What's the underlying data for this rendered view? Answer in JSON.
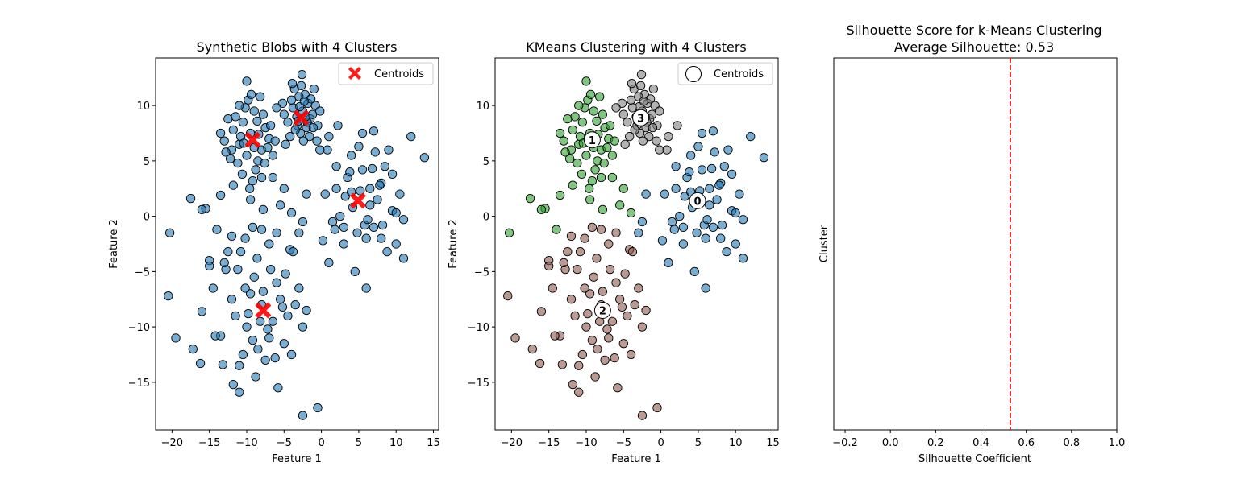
{
  "colors": {
    "blob_points": "#1f77b4",
    "centroid_marker": "#ff0000",
    "cluster_0": "#1f77b4",
    "cluster_1": "#2ca02c",
    "cluster_2": "#8c564b",
    "cluster_3": "#7f7f7f",
    "silhouette_line": "#ff0000"
  },
  "chart_data": [
    {
      "type": "scatter",
      "title": "Synthetic Blobs with 4 Clusters",
      "xlabel": "Feature 1",
      "ylabel": "Feature 2",
      "xlim": [
        -22.2,
        15.7
      ],
      "ylim": [
        -19.3,
        14.3
      ],
      "xticks": [
        -20,
        -15,
        -10,
        -5,
        0,
        5,
        10,
        15
      ],
      "yticks": [
        -15,
        -10,
        -5,
        0,
        5,
        10
      ],
      "grid": false,
      "legend": {
        "position": "top-right",
        "entries": [
          "Centroids"
        ]
      },
      "centroids": [
        [
          4.9,
          1.4
        ],
        [
          -9.2,
          6.9
        ],
        [
          -7.8,
          -8.5
        ],
        [
          -2.7,
          8.9
        ]
      ],
      "points": [
        [
          7.5,
          1.5
        ],
        [
          5.5,
          4.2
        ],
        [
          3.0,
          -1.0
        ],
        [
          8.0,
          3.0
        ],
        [
          6.0,
          -2.0
        ],
        [
          2.0,
          2.5
        ],
        [
          9.5,
          0.5
        ],
        [
          4.0,
          5.5
        ],
        [
          1.5,
          -0.5
        ],
        [
          6.5,
          1.0
        ],
        [
          10.0,
          -2.5
        ],
        [
          3.5,
          3.5
        ],
        [
          7.0,
          -1.0
        ],
        [
          5.0,
          6.3
        ],
        [
          8.5,
          4.5
        ],
        [
          0.5,
          2.0
        ],
        [
          11.0,
          -0.3
        ],
        [
          4.5,
          -5.0
        ],
        [
          6.0,
          -6.5
        ],
        [
          9.0,
          6.0
        ],
        [
          12.0,
          7.2
        ],
        [
          13.8,
          5.3
        ],
        [
          2.5,
          0.0
        ],
        [
          7.8,
          2.8
        ],
        [
          5.8,
          -0.8
        ],
        [
          3.2,
          1.8
        ],
        [
          8.8,
          -3.2
        ],
        [
          10.5,
          2.0
        ],
        [
          4.8,
          -1.5
        ],
        [
          6.8,
          4.3
        ],
        [
          1.0,
          -4.2
        ],
        [
          0.2,
          -2.2
        ],
        [
          11.0,
          -3.8
        ],
        [
          7.0,
          7.7
        ],
        [
          5.5,
          7.5
        ],
        [
          3.8,
          4.0
        ],
        [
          2.0,
          4.5
        ],
        [
          9.5,
          3.8
        ],
        [
          6.2,
          -0.3
        ],
        [
          4.2,
          0.8
        ],
        [
          8.2,
          -0.8
        ],
        [
          5.2,
          2.3
        ],
        [
          7.2,
          5.8
        ],
        [
          3.0,
          -2.5
        ],
        [
          10.0,
          0.3
        ],
        [
          0.8,
          6.0
        ],
        [
          1.8,
          -1.2
        ],
        [
          6.5,
          2.5
        ],
        [
          8.0,
          -2.0
        ],
        [
          4.0,
          2.2
        ],
        [
          -9.5,
          7.5
        ],
        [
          -8.0,
          6.0
        ],
        [
          -10.5,
          8.5
        ],
        [
          -7.5,
          8.0
        ],
        [
          -11.0,
          6.5
        ],
        [
          -9.0,
          9.5
        ],
        [
          -8.5,
          5.0
        ],
        [
          -10.0,
          5.5
        ],
        [
          -7.0,
          7.0
        ],
        [
          -11.5,
          9.0
        ],
        [
          -12.0,
          6.0
        ],
        [
          -9.8,
          10.5
        ],
        [
          -8.8,
          4.2
        ],
        [
          -10.8,
          7.2
        ],
        [
          -7.8,
          9.2
        ],
        [
          -12.5,
          8.8
        ],
        [
          -9.2,
          3.2
        ],
        [
          -6.5,
          5.5
        ],
        [
          -11.2,
          4.8
        ],
        [
          -8.2,
          10.8
        ],
        [
          -13.0,
          6.8
        ],
        [
          -10.2,
          9.8
        ],
        [
          -7.2,
          6.2
        ],
        [
          -9.6,
          2.5
        ],
        [
          -12.2,
          5.2
        ],
        [
          -10.6,
          3.8
        ],
        [
          -8.6,
          8.6
        ],
        [
          -6.8,
          8.2
        ],
        [
          -11.8,
          7.8
        ],
        [
          -9.4,
          11.0
        ],
        [
          -10.0,
          12.2
        ],
        [
          -13.5,
          7.5
        ],
        [
          -8.0,
          3.5
        ],
        [
          -6.2,
          6.8
        ],
        [
          -11.0,
          10.0
        ],
        [
          -9.0,
          6.2
        ],
        [
          -7.6,
          4.8
        ],
        [
          -12.8,
          5.8
        ],
        [
          -10.4,
          6.6
        ],
        [
          -8.4,
          7.4
        ],
        [
          -2.5,
          9.5
        ],
        [
          -3.2,
          8.2
        ],
        [
          -1.8,
          10.2
        ],
        [
          -2.8,
          7.5
        ],
        [
          -1.5,
          8.8
        ],
        [
          -3.8,
          9.8
        ],
        [
          -2.2,
          11.0
        ],
        [
          -1.2,
          9.2
        ],
        [
          -3.5,
          7.8
        ],
        [
          -2.0,
          8.0
        ],
        [
          -4.0,
          10.5
        ],
        [
          -0.8,
          10.0
        ],
        [
          -2.6,
          12.8
        ],
        [
          -3.0,
          10.8
        ],
        [
          -1.6,
          7.2
        ],
        [
          -4.5,
          8.5
        ],
        [
          -0.5,
          8.2
        ],
        [
          -2.4,
          6.8
        ],
        [
          -3.6,
          11.5
        ],
        [
          -1.0,
          11.5
        ],
        [
          -5.0,
          9.2
        ],
        [
          -0.2,
          9.5
        ],
        [
          -2.9,
          9.9
        ],
        [
          -1.9,
          8.5
        ],
        [
          -3.3,
          9.0
        ],
        [
          -4.2,
          7.2
        ],
        [
          -1.4,
          10.6
        ],
        [
          -2.7,
          11.8
        ],
        [
          -0.6,
          6.8
        ],
        [
          -5.2,
          10.2
        ],
        [
          -4.8,
          6.5
        ],
        [
          -0.2,
          6.0
        ],
        [
          1.0,
          7.2
        ],
        [
          2.2,
          8.2
        ],
        [
          -6.0,
          9.8
        ],
        [
          -3.9,
          12.0
        ],
        [
          -2.1,
          9.0
        ],
        [
          -1.1,
          8.0
        ],
        [
          -3.1,
          8.6
        ],
        [
          -2.3,
          10.4
        ],
        [
          -8.0,
          -8.0
        ],
        [
          -6.5,
          -9.5
        ],
        [
          -9.5,
          -7.0
        ],
        [
          -7.0,
          -11.0
        ],
        [
          -5.5,
          -7.5
        ],
        [
          -10.0,
          -10.0
        ],
        [
          -8.5,
          -12.0
        ],
        [
          -6.0,
          -6.0
        ],
        [
          -11.5,
          -9.0
        ],
        [
          -4.5,
          -9.0
        ],
        [
          -9.0,
          -5.5
        ],
        [
          -7.5,
          -13.0
        ],
        [
          -5.0,
          -11.5
        ],
        [
          -12.0,
          -7.5
        ],
        [
          -10.5,
          -12.5
        ],
        [
          -3.5,
          -8.0
        ],
        [
          -8.8,
          -14.5
        ],
        [
          -6.8,
          -4.8
        ],
        [
          -13.5,
          -10.8
        ],
        [
          -4.0,
          -12.5
        ],
        [
          -11.0,
          -13.5
        ],
        [
          -7.2,
          -10.2
        ],
        [
          -5.8,
          -15.5
        ],
        [
          -9.8,
          -8.8
        ],
        [
          -2.5,
          -10.0
        ],
        [
          -12.8,
          -4.8
        ],
        [
          -3.0,
          -6.5
        ],
        [
          -10.2,
          -6.5
        ],
        [
          -6.2,
          -12.8
        ],
        [
          -8.2,
          -9.5
        ],
        [
          -14.5,
          -6.5
        ],
        [
          -11.8,
          -15.2
        ],
        [
          -7.8,
          -6.8
        ],
        [
          -4.8,
          -5.2
        ],
        [
          -9.2,
          -11.2
        ],
        [
          -5.2,
          -8.2
        ],
        [
          -13.2,
          -13.4
        ],
        [
          -2.0,
          -8.5
        ],
        [
          -10.8,
          -3.2
        ],
        [
          -8.6,
          -3.8
        ],
        [
          -15.0,
          -4.0
        ],
        [
          -16.0,
          -8.6
        ],
        [
          -17.2,
          -12.0
        ],
        [
          -19.5,
          -11.0
        ],
        [
          -20.5,
          -7.2
        ],
        [
          -16.2,
          -13.3
        ],
        [
          -14.2,
          -10.8
        ],
        [
          -12.5,
          -3.2
        ],
        [
          -11.0,
          -15.9
        ],
        [
          -2.5,
          -18.0
        ],
        [
          -0.5,
          -17.3
        ],
        [
          -4.2,
          -3.0
        ],
        [
          -6.0,
          -1.5
        ],
        [
          -8.0,
          -1.2
        ],
        [
          -10.2,
          -2.0
        ],
        [
          -12.0,
          -1.8
        ],
        [
          -14.0,
          -1.2
        ],
        [
          -7.0,
          -2.5
        ],
        [
          -3.8,
          -3.2
        ],
        [
          -9.2,
          -1.0
        ],
        [
          -20.3,
          -1.5
        ],
        [
          -17.5,
          1.6
        ],
        [
          -15.5,
          0.7
        ],
        [
          -13.5,
          1.9
        ],
        [
          -11.8,
          2.8
        ],
        [
          -9.5,
          1.5
        ],
        [
          -7.8,
          0.6
        ],
        [
          -5.5,
          1.0
        ],
        [
          -4.0,
          0.3
        ],
        [
          -2.5,
          -0.5
        ],
        [
          -16.0,
          0.6
        ],
        [
          -15.0,
          -4.5
        ],
        [
          -13.0,
          -4.2
        ],
        [
          -11.2,
          -4.8
        ],
        [
          -3.0,
          -1.5
        ],
        [
          -2.0,
          2.0
        ],
        [
          -6.5,
          3.5
        ],
        [
          -5.0,
          2.5
        ]
      ]
    },
    {
      "type": "scatter",
      "title": "KMeans Clustering with 4 Clusters",
      "xlabel": "Feature 1",
      "ylabel": "Feature 2",
      "xlim": [
        -22.2,
        15.7
      ],
      "ylim": [
        -19.3,
        14.3
      ],
      "xticks": [
        -20,
        -15,
        -10,
        -5,
        0,
        5,
        10,
        15
      ],
      "yticks": [
        -15,
        -10,
        -5,
        0,
        5,
        10
      ],
      "grid": false,
      "legend": {
        "position": "top-right",
        "entries": [
          "Centroids"
        ]
      },
      "centroids": [
        {
          "label": "0",
          "x": 4.9,
          "y": 1.4
        },
        {
          "label": "1",
          "x": -9.2,
          "y": 6.9
        },
        {
          "label": "2",
          "x": -7.8,
          "y": -8.5
        },
        {
          "label": "3",
          "x": -2.7,
          "y": 8.9
        }
      ]
    },
    {
      "type": "bar",
      "title": "Silhouette Score for k-Means Clustering",
      "subtitle": "Average Silhouette: 0.53",
      "xlabel": "Silhouette Coefficient",
      "ylabel": "Cluster",
      "xlim": [
        -0.25,
        1.0
      ],
      "xticks": [
        -0.2,
        0.0,
        0.2,
        0.4,
        0.6,
        0.8,
        1.0
      ],
      "average_silhouette": 0.53,
      "grid": false
    }
  ]
}
